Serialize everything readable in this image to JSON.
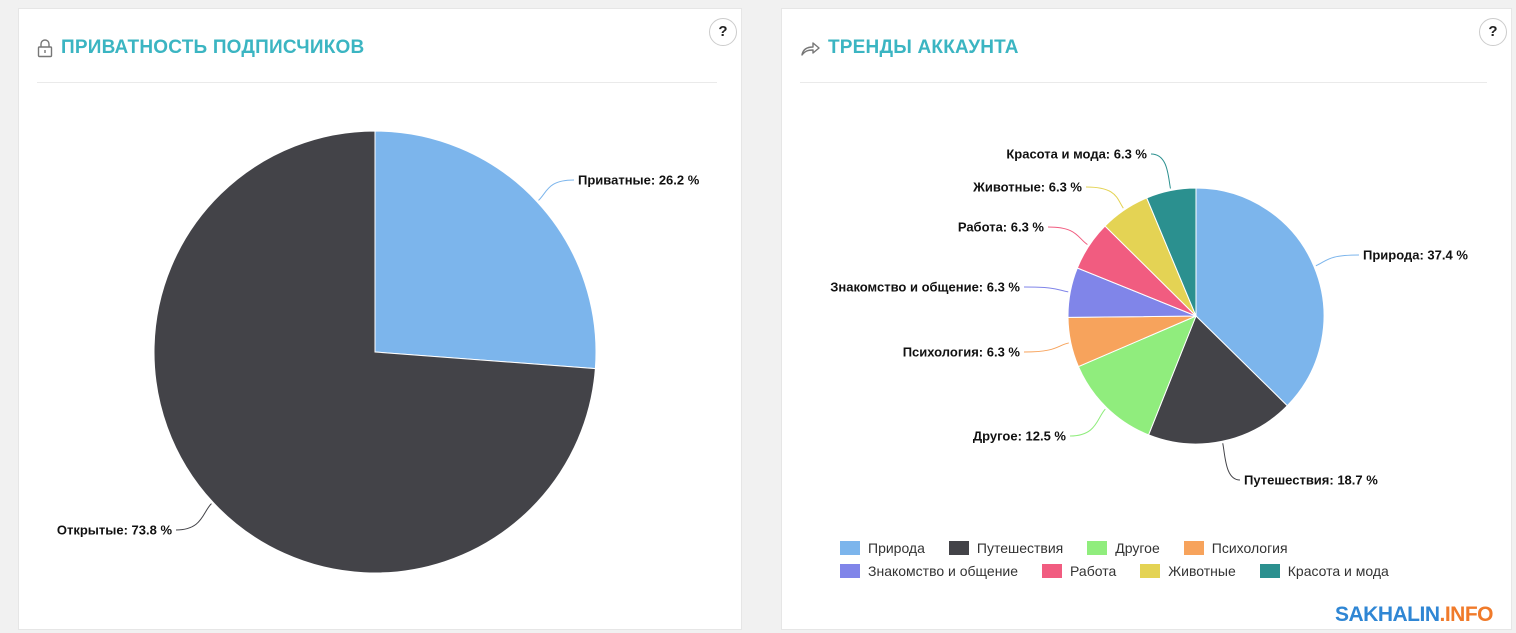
{
  "left": {
    "title": "ПРИВАТНОСТЬ ПОДПИСЧИКОВ",
    "help": "?"
  },
  "right": {
    "title": "ТРЕНДЫ АККАУНТА",
    "help": "?"
  },
  "logo": {
    "part1": "SAKHALIN",
    "part2": ".INFO"
  },
  "chart_data": [
    {
      "type": "pie",
      "title": "ПРИВАТНОСТЬ ПОДПИСЧИКОВ",
      "categories": [
        "Приватные",
        "Открытые"
      ],
      "values": [
        26.2,
        73.8
      ],
      "colors": [
        "#7cb5ec",
        "#434348"
      ],
      "labels": [
        "Приватные: 26.2 %",
        "Открытые: 73.8 %"
      ]
    },
    {
      "type": "pie",
      "title": "ТРЕНДЫ АККАУНТА",
      "categories": [
        "Природа",
        "Путешествия",
        "Другое",
        "Психология",
        "Знакомство и общение",
        "Работа",
        "Животные",
        "Красота и мода"
      ],
      "values": [
        37.4,
        18.7,
        12.5,
        6.3,
        6.3,
        6.3,
        6.3,
        6.3
      ],
      "colors": [
        "#7cb5ec",
        "#434348",
        "#90ed7d",
        "#f7a35c",
        "#8085e9",
        "#f15c80",
        "#e4d354",
        "#2b908f"
      ],
      "labels": [
        "Природа: 37.4 %",
        "Путешествия: 18.7 %",
        "Другое: 12.5 %",
        "Психология: 6.3 %",
        "Знакомство и общение: 6.3 %",
        "Работа: 6.3 %",
        "Животные: 6.3 %",
        "Красота и мода: 6.3 %"
      ],
      "legend": "bottom"
    }
  ]
}
